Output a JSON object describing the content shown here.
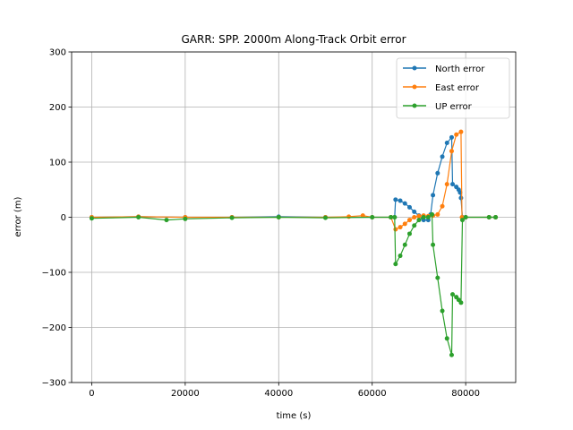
{
  "chart_data": {
    "type": "line",
    "title": "GARR: SPP. 2000m Along-Track Orbit error",
    "xlabel": "time (s)",
    "ylabel": "error (m)",
    "xlim": [
      -4300,
      90700
    ],
    "ylim": [
      -300,
      300
    ],
    "xticks": [
      0,
      20000,
      40000,
      60000,
      80000
    ],
    "xtick_labels": [
      "0",
      "20000",
      "40000",
      "60000",
      "80000"
    ],
    "yticks": [
      -300,
      -200,
      -100,
      0,
      100,
      200,
      300
    ],
    "ytick_labels": [
      "−300",
      "−200",
      "−100",
      "0",
      "100",
      "200",
      "300"
    ],
    "grid": true,
    "legend_position": "top-right",
    "series": [
      {
        "name": "North error",
        "color": "#1f77b4",
        "x": [
          0,
          10000,
          20000,
          30000,
          40000,
          50000,
          60000,
          64000,
          64800,
          65000,
          66000,
          67000,
          68000,
          69000,
          70000,
          71000,
          72000,
          72500,
          73000,
          74000,
          75000,
          76000,
          77000,
          77200,
          78000,
          78500,
          78800,
          79000,
          79300,
          80000,
          85000,
          86400
        ],
        "y": [
          0,
          1,
          0,
          0,
          1,
          0,
          0,
          0,
          0,
          32,
          30,
          25,
          18,
          10,
          3,
          -5,
          -5,
          5,
          40,
          80,
          110,
          135,
          145,
          60,
          55,
          50,
          45,
          35,
          0,
          0,
          0,
          0
        ]
      },
      {
        "name": "East error",
        "color": "#ff7f0e",
        "x": [
          0,
          10000,
          20000,
          30000,
          40000,
          50000,
          55000,
          58000,
          60000,
          64000,
          65000,
          66000,
          67000,
          68000,
          69000,
          70000,
          71000,
          72000,
          73000,
          74000,
          75000,
          76000,
          77000,
          78000,
          79000,
          79200,
          80000,
          85000,
          86400
        ],
        "y": [
          0,
          1,
          0,
          0,
          0,
          0,
          1,
          3,
          0,
          0,
          -22,
          -18,
          -12,
          -5,
          0,
          2,
          3,
          2,
          3,
          5,
          20,
          60,
          120,
          150,
          155,
          0,
          0,
          0,
          0
        ]
      },
      {
        "name": "UP error",
        "color": "#2ca02c",
        "x": [
          0,
          10000,
          16000,
          20000,
          30000,
          40000,
          50000,
          60000,
          64000,
          64800,
          65000,
          66000,
          67000,
          68000,
          69000,
          70000,
          71000,
          72000,
          72800,
          73000,
          74000,
          75000,
          76000,
          77000,
          77200,
          78000,
          78500,
          79000,
          79300,
          80000,
          85000,
          86400
        ],
        "y": [
          -2,
          0,
          -5,
          -3,
          -1,
          0,
          -1,
          0,
          0,
          0,
          -85,
          -70,
          -50,
          -30,
          -15,
          -5,
          0,
          0,
          5,
          -50,
          -110,
          -170,
          -220,
          -250,
          -140,
          -145,
          -150,
          -155,
          -5,
          0,
          0,
          0
        ]
      }
    ]
  }
}
